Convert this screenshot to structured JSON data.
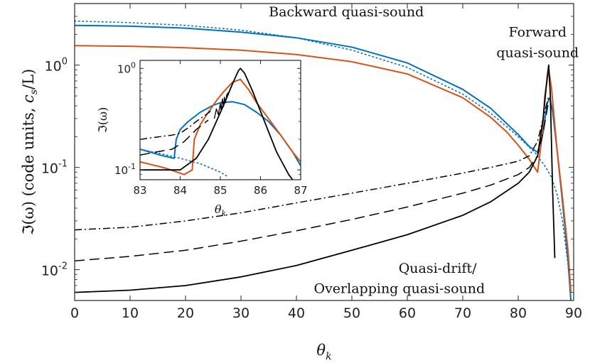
{
  "chart_data": {
    "type": "line",
    "yscale": "log",
    "xlabel": "θk",
    "xlabel_main": "θ",
    "xlabel_sub": "k",
    "ylabel": "ℑ(ω) (code units, cs/L)",
    "ylabel_lead": "ℑ(ω) (code units, ",
    "ylabel_c": "c",
    "ylabel_csub": "s",
    "ylabel_tail": "/L)",
    "xlim": [
      0,
      90
    ],
    "ylim": [
      0.005,
      4.0
    ],
    "x_ticks": [
      0,
      10,
      20,
      30,
      40,
      50,
      60,
      70,
      80,
      90
    ],
    "x_tick_labels": [
      "0",
      "10",
      "20",
      "30",
      "40",
      "50",
      "60",
      "70",
      "80",
      "90"
    ],
    "y_ticks": [
      0.01,
      0.1,
      1
    ],
    "y_tick_labels": [
      {
        "base": "10",
        "exp": "-2"
      },
      {
        "base": "10",
        "exp": "-1"
      },
      {
        "base": "10",
        "exp": "0"
      }
    ],
    "annotations": [
      {
        "text": "Backward quasi-sound",
        "x": 49,
        "y": 3.0,
        "anchor": "middle"
      },
      {
        "text": "Forward",
        "x": 83.5,
        "y": 1.9,
        "anchor": "middle"
      },
      {
        "text": "quasi-sound",
        "x": 83.5,
        "y": 1.2,
        "anchor": "middle"
      },
      {
        "text": "Quasi-drift/",
        "x": 72.5,
        "y": 0.0093,
        "anchor": "end"
      },
      {
        "text": "Overlapping quasi-sound",
        "x": 74,
        "y": 0.0059,
        "anchor": "end"
      }
    ],
    "series": [
      {
        "name": "blue solid",
        "color": "#0072BD",
        "style": "solid",
        "width": 2,
        "x": [
          0,
          10,
          20,
          30,
          40,
          50,
          60,
          70,
          75,
          80,
          82,
          83.5,
          84.5,
          85.2,
          85.7,
          86.2,
          87,
          88,
          89,
          89.5
        ],
        "y": [
          2.45,
          2.4,
          2.3,
          2.1,
          1.85,
          1.5,
          1.05,
          0.58,
          0.38,
          0.21,
          0.16,
          0.14,
          0.22,
          0.42,
          0.48,
          0.35,
          0.15,
          0.045,
          0.012,
          0.005
        ]
      },
      {
        "name": "blue dotted",
        "color": "#0072BD",
        "style": "dotted",
        "width": 1.6,
        "x": [
          0,
          10,
          20,
          30,
          40,
          50,
          60,
          70,
          75,
          80,
          83,
          85,
          86,
          87,
          88,
          89,
          89.5
        ],
        "y": [
          2.7,
          2.6,
          2.45,
          2.2,
          1.85,
          1.4,
          0.95,
          0.52,
          0.34,
          0.2,
          0.14,
          0.1,
          0.08,
          0.055,
          0.03,
          0.011,
          0.005
        ]
      },
      {
        "name": "orange solid",
        "color": "#D95319",
        "style": "solid",
        "width": 2,
        "x": [
          0,
          10,
          20,
          30,
          40,
          50,
          60,
          70,
          75,
          78,
          80,
          82,
          83.5,
          84.3,
          84.8,
          85.5,
          86,
          86.5,
          87,
          88,
          89,
          89.5
        ],
        "y": [
          1.55,
          1.53,
          1.48,
          1.4,
          1.27,
          1.08,
          0.82,
          0.48,
          0.31,
          0.22,
          0.165,
          0.12,
          0.09,
          0.2,
          0.5,
          0.9,
          0.6,
          0.3,
          0.15,
          0.05,
          0.015,
          0.006
        ]
      },
      {
        "name": "black dash-dot",
        "color": "#000000",
        "style": "dashdot",
        "width": 1.5,
        "x": [
          0,
          10,
          20,
          30,
          40,
          50,
          60,
          70,
          75,
          80,
          82,
          83.5,
          84.5,
          85.5
        ],
        "y": [
          0.0245,
          0.026,
          0.03,
          0.036,
          0.045,
          0.056,
          0.07,
          0.088,
          0.1,
          0.115,
          0.13,
          0.18,
          0.3,
          0.5
        ]
      },
      {
        "name": "black dashed",
        "color": "#000000",
        "style": "dashed",
        "width": 1.5,
        "x": [
          0,
          10,
          20,
          30,
          40,
          50,
          60,
          70,
          75,
          80,
          82,
          83.5,
          84.5,
          85.5
        ],
        "y": [
          0.0122,
          0.0135,
          0.0155,
          0.019,
          0.024,
          0.031,
          0.041,
          0.056,
          0.067,
          0.085,
          0.1,
          0.13,
          0.22,
          0.45
        ]
      },
      {
        "name": "black solid",
        "color": "#000000",
        "style": "solid",
        "width": 1.8,
        "x": [
          0,
          10,
          20,
          30,
          40,
          50,
          60,
          70,
          75,
          80,
          82,
          83.5,
          84.5,
          85.2,
          85.5,
          85.8,
          86.2,
          86.6
        ],
        "y": [
          0.006,
          0.0063,
          0.007,
          0.0085,
          0.011,
          0.0155,
          0.022,
          0.034,
          0.046,
          0.07,
          0.09,
          0.13,
          0.3,
          0.75,
          1.0,
          0.5,
          0.06,
          0.013
        ]
      }
    ],
    "inset": {
      "xlabel": "θk",
      "xlabel_main": "θ",
      "xlabel_sub": "k",
      "ylabel": "ℑ(ω)",
      "xlim": [
        83,
        87
      ],
      "ylim": [
        0.08,
        1.2
      ],
      "x_ticks": [
        83,
        84,
        85,
        86,
        87
      ],
      "x_tick_labels": [
        "83",
        "84",
        "85",
        "86",
        "87"
      ],
      "y_ticks": [
        0.1,
        1
      ],
      "y_tick_labels": [
        {
          "base": "10",
          "exp": "-1"
        },
        {
          "base": "10",
          "exp": "0"
        }
      ],
      "series": [
        {
          "name": "blue solid",
          "color": "#0072BD",
          "style": "solid",
          "width": 2,
          "x": [
            83,
            83.5,
            83.85,
            83.9,
            84.0,
            84.2,
            84.5,
            84.8,
            85.0,
            85.3,
            85.6,
            85.9,
            86.2,
            86.5,
            86.8,
            87
          ],
          "y": [
            0.16,
            0.14,
            0.13,
            0.2,
            0.25,
            0.3,
            0.37,
            0.43,
            0.46,
            0.47,
            0.44,
            0.37,
            0.3,
            0.22,
            0.15,
            0.11
          ]
        },
        {
          "name": "blue dotted",
          "color": "#0072BD",
          "style": "dotted",
          "width": 1.6,
          "x": [
            83,
            83.5,
            84,
            84.5,
            85,
            85.2
          ],
          "y": [
            0.16,
            0.145,
            0.13,
            0.115,
            0.095,
            0.085
          ]
        },
        {
          "name": "orange solid",
          "color": "#D95319",
          "style": "solid",
          "width": 2,
          "x": [
            83,
            83.6,
            84.1,
            84.3,
            84.35,
            84.5,
            84.7,
            84.9,
            85.1,
            85.3,
            85.5,
            85.7,
            85.9,
            86.2,
            86.5,
            86.8,
            87
          ],
          "y": [
            0.12,
            0.105,
            0.09,
            0.1,
            0.2,
            0.28,
            0.37,
            0.48,
            0.6,
            0.73,
            0.78,
            0.62,
            0.46,
            0.32,
            0.22,
            0.15,
            0.12
          ]
        },
        {
          "name": "black dash-dot",
          "color": "#000000",
          "style": "dashdot",
          "width": 1.5,
          "x": [
            83,
            83.4,
            83.8,
            84.0,
            84.2,
            84.4,
            84.6,
            84.8
          ],
          "y": [
            0.2,
            0.21,
            0.22,
            0.23,
            0.26,
            0.3,
            0.34,
            0.39
          ]
        },
        {
          "name": "black dashed",
          "color": "#000000",
          "style": "dashed",
          "width": 1.5,
          "x": [
            83,
            83.4,
            83.8,
            84.1,
            84.4,
            84.7
          ],
          "y": [
            0.14,
            0.15,
            0.16,
            0.19,
            0.25,
            0.31
          ]
        },
        {
          "name": "black solid",
          "color": "#000000",
          "style": "solid",
          "width": 1.8,
          "x": [
            83,
            83.5,
            84.0,
            84.4,
            84.7,
            84.9,
            85.1,
            85.3,
            85.45,
            85.5,
            85.6,
            85.8,
            86.1,
            86.4,
            86.7,
            86.8
          ],
          "y": [
            0.1,
            0.1,
            0.1,
            0.13,
            0.2,
            0.3,
            0.45,
            0.7,
            0.95,
            1.0,
            0.9,
            0.6,
            0.3,
            0.15,
            0.09,
            0.08
          ]
        },
        {
          "name": "black jagged",
          "color": "#000000",
          "style": "solid",
          "width": 1.3,
          "x": [
            84.85,
            84.9,
            84.95,
            85.0,
            85.02,
            85.05,
            85.08,
            85.1,
            85.13,
            85.16,
            85.2
          ],
          "y": [
            0.32,
            0.4,
            0.35,
            0.45,
            0.38,
            0.5,
            0.42,
            0.52,
            0.46,
            0.55,
            0.58
          ]
        }
      ]
    }
  }
}
